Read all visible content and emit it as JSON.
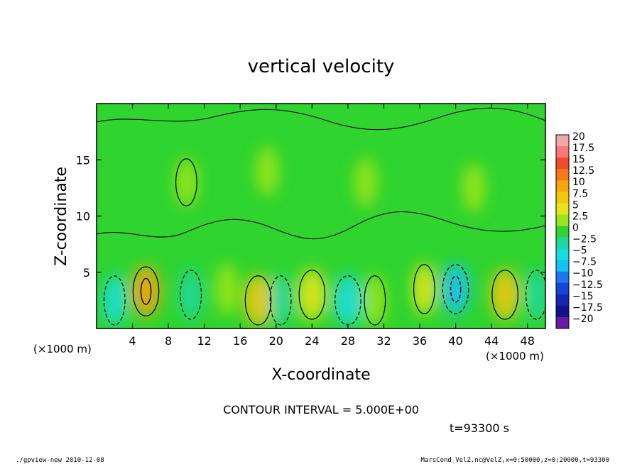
{
  "chart_data": {
    "type": "heatmap",
    "title": "vertical velocity",
    "xlabel": "X-coordinate",
    "ylabel": "Z-coordinate",
    "x_unit_label": "(×1000 m)",
    "y_unit_label": "(×1000 m)",
    "xlim": [
      0,
      50
    ],
    "ylim": [
      0,
      20
    ],
    "x_ticks": [
      4,
      8,
      12,
      16,
      20,
      24,
      28,
      32,
      36,
      40,
      44,
      48
    ],
    "y_ticks": [
      5,
      10,
      15
    ],
    "colorbar": {
      "levels": [
        20,
        17.5,
        15,
        12.5,
        10,
        7.5,
        5,
        2.5,
        0,
        -2.5,
        -5,
        -7.5,
        -10,
        -12.5,
        -15,
        -17.5,
        -20
      ],
      "tick_labels": [
        "20",
        "17.5",
        "15",
        "12.5",
        "10",
        "7.5",
        "5",
        "2.5",
        "0",
        "−2.5",
        "−5",
        "−7.5",
        "−10",
        "−12.5",
        "−15",
        "−17.5",
        "−20"
      ],
      "colors": [
        "#f4a7a7",
        "#f77b7b",
        "#f24a2c",
        "#f47a1a",
        "#f6a50f",
        "#f2c80e",
        "#e5e51a",
        "#9ae61a",
        "#2fd42f",
        "#1ed8a0",
        "#15dede",
        "#14c3f0",
        "#1a78f0",
        "#1446d8",
        "#1428b4",
        "#12128c",
        "#6a1aa0"
      ]
    },
    "features": [
      {
        "x": 2.0,
        "z": 2.5,
        "value": -4.0
      },
      {
        "x": 5.5,
        "z": 3.3,
        "value": 11.0
      },
      {
        "x": 10.5,
        "z": 3.0,
        "value": -3.0
      },
      {
        "x": 14.5,
        "z": 3.5,
        "value": 1.5
      },
      {
        "x": 18.0,
        "z": 2.5,
        "value": 6.5
      },
      {
        "x": 20.5,
        "z": 2.5,
        "value": -3.0
      },
      {
        "x": 24.0,
        "z": 3.0,
        "value": 6.0
      },
      {
        "x": 28.0,
        "z": 2.5,
        "value": -5.5
      },
      {
        "x": 31.0,
        "z": 2.5,
        "value": 3.0
      },
      {
        "x": 36.5,
        "z": 3.5,
        "value": 4.0
      },
      {
        "x": 40.0,
        "z": 3.5,
        "value": -8.5
      },
      {
        "x": 45.5,
        "z": 3.0,
        "value": 6.5
      },
      {
        "x": 49.0,
        "z": 3.0,
        "value": -3.5
      },
      {
        "x": 10.0,
        "z": 13.0,
        "value": 3.0
      },
      {
        "x": 19.0,
        "z": 14.0,
        "value": 2.5
      },
      {
        "x": 30.0,
        "z": 13.0,
        "value": 2.0
      },
      {
        "x": 42.0,
        "z": 12.5,
        "value": 2.5
      }
    ],
    "contour_interval_text": "CONTOUR INTERVAL = 5.000E+00",
    "time_text": "t=93300 s"
  },
  "footer": {
    "left": "./gpview-new  2010-12-08",
    "right": "MarsCond_VelZ.nc@VelZ,x=0:50000,z=0:20000,t=93300"
  }
}
